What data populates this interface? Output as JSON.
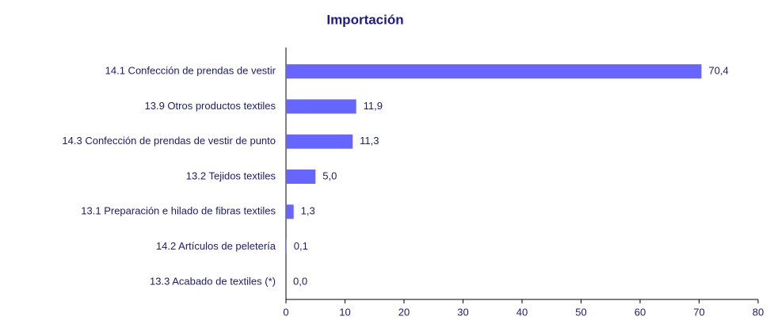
{
  "chart_data": {
    "type": "bar",
    "orientation": "horizontal",
    "title": "Importación",
    "categories": [
      "14.1 Confección de prendas de vestir",
      "13.9 Otros productos textiles",
      "14.3 Confección de prendas de vestir de punto",
      "13.2 Tejidos textiles",
      "13.1 Preparación e hilado de fibras textiles",
      "14.2 Artículos de peletería",
      "13.3 Acabado de textiles (*)"
    ],
    "values": [
      70.4,
      11.9,
      11.3,
      5.0,
      1.3,
      0.1,
      0.0
    ],
    "value_labels": [
      "70,4",
      "11,9",
      "11,3",
      "5,0",
      "1,3",
      "0,1",
      "0,0"
    ],
    "color": "#6666ff",
    "xlim": [
      0,
      80
    ],
    "xticks": [
      0,
      10,
      20,
      30,
      40,
      50,
      60,
      70,
      80
    ]
  }
}
